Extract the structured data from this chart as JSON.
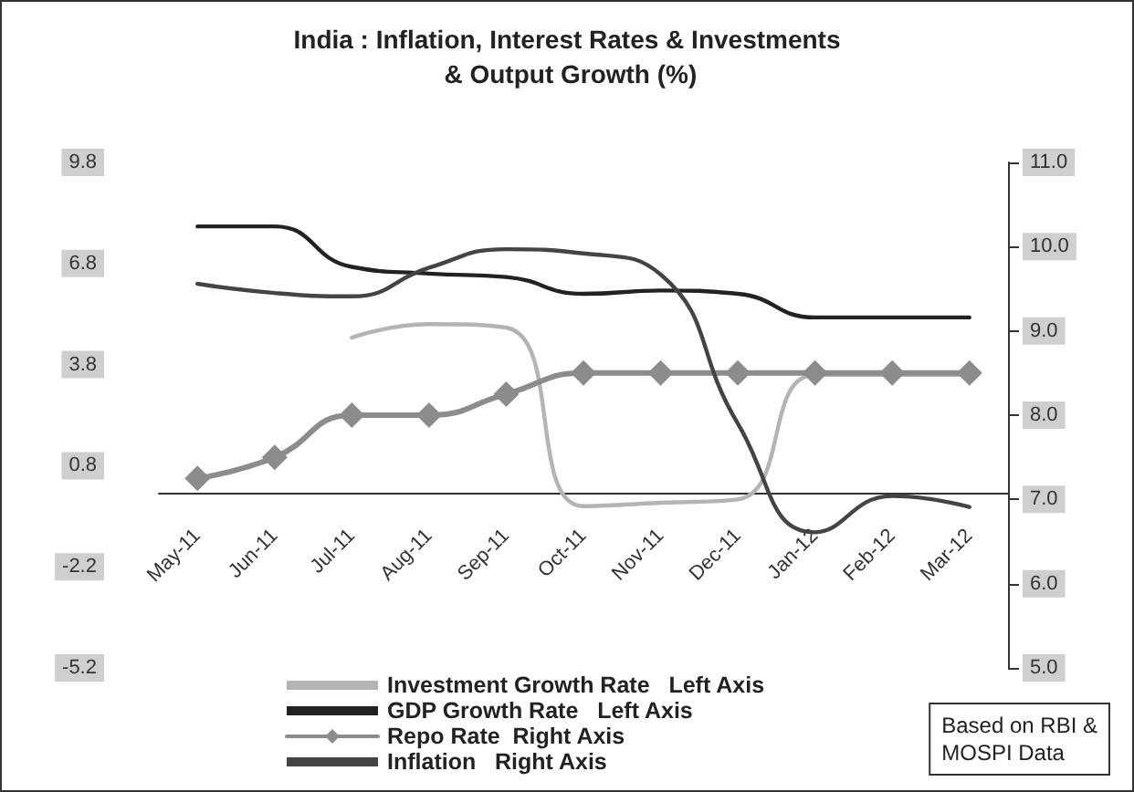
{
  "chart_data": {
    "type": "line",
    "title": "India : Inflation, Interest Rates & Investments & Output Growth (%)",
    "categories": [
      "May-11",
      "Jun-11",
      "Jul-11",
      "Aug-11",
      "Sep-11",
      "Oct-11",
      "Nov-11",
      "Dec-11",
      "Jan-12",
      "Feb-12",
      "Mar-12"
    ],
    "series": [
      {
        "name": "Investment Growth Rate   Left Axis",
        "color": "#b4b4b4",
        "values": [
          null,
          null,
          4.6,
          5.0,
          4.9,
          -0.4,
          -0.3,
          -0.2,
          3.5,
          3.5,
          3.5
        ]
      },
      {
        "name": "GDP Growth Rate   Left Axis",
        "color": "#222222",
        "values": [
          7.9,
          7.9,
          6.7,
          6.5,
          6.4,
          5.9,
          6.0,
          5.9,
          5.2,
          5.2,
          5.2
        ]
      },
      {
        "name": "Repo Rate  Right Axis",
        "color": "#8c8c8c",
        "axis": "y2",
        "marker": "diamond",
        "values": [
          7.25,
          7.5,
          8.0,
          8.0,
          8.25,
          8.5,
          8.5,
          8.5,
          8.5,
          8.5,
          8.5
        ]
      },
      {
        "name": "Inflation   Right Axis",
        "color": "#444444",
        "axis": "y2",
        "values": [
          9.56,
          9.45,
          9.41,
          9.75,
          9.97,
          9.92,
          9.67,
          7.9,
          6.61,
          7.04,
          6.91
        ]
      }
    ],
    "ylim": [
      -5.2,
      9.8
    ],
    "yticks": [
      -5.2,
      -2.2,
      0.8,
      3.8,
      6.8,
      9.8
    ],
    "y2lim": [
      5,
      11
    ],
    "y2ticks": [
      {
        "value": 5,
        "label": "5.0"
      },
      {
        "value": 6,
        "label": "6.0"
      },
      {
        "value": 7,
        "label": "7.0"
      },
      {
        "value": 8,
        "label": "8.0"
      },
      {
        "value": 9,
        "label": "9.0"
      },
      {
        "value": 10,
        "label": "10.0"
      },
      {
        "value": 11,
        "label": "11.0"
      }
    ],
    "marker": "none",
    "grid": false,
    "legend": "bottom",
    "annotations": [
      "Based on RBI & MOSPI Data"
    ]
  }
}
